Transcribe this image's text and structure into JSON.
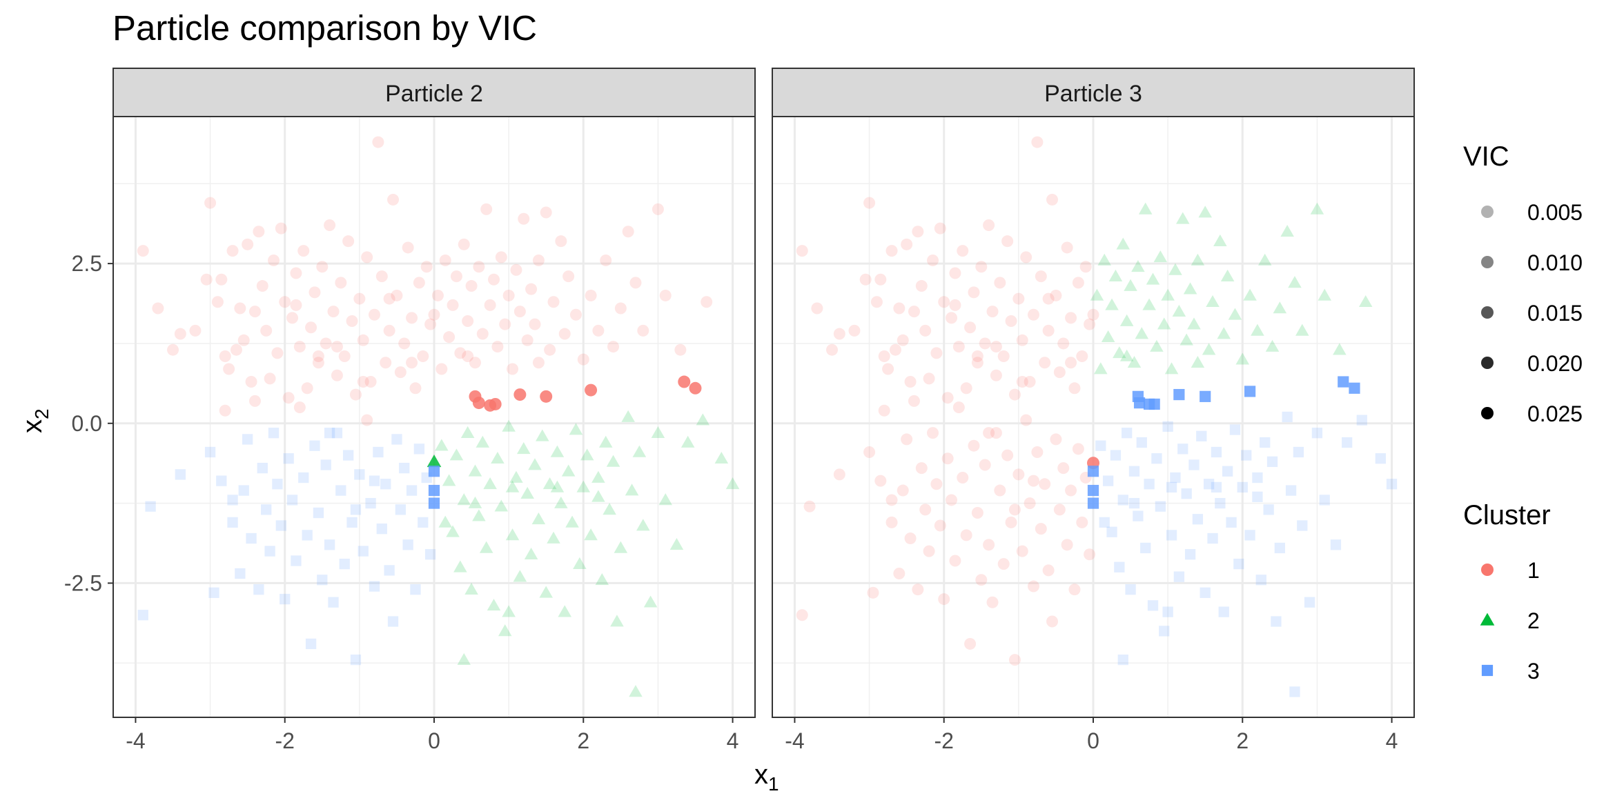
{
  "chart_data": {
    "type": "scatter",
    "title": "Particle comparison by VIC",
    "xlabel": "x",
    "xlabel_sub": "1",
    "ylabel": "x",
    "ylabel_sub": "2",
    "xlim": [
      -4.3,
      4.3
    ],
    "ylim": [
      -4.6,
      4.8
    ],
    "x_ticks": [
      -4,
      -2,
      0,
      2,
      4
    ],
    "x_tick_labels": [
      "-4",
      "-2",
      "0",
      "2",
      "4"
    ],
    "y_ticks": [
      -2.5,
      0.0,
      2.5
    ],
    "y_tick_labels": [
      "-2.5",
      "0.0",
      "2.5"
    ],
    "grid": true,
    "legend_position": "right",
    "colors": {
      "1": "#F8766D",
      "2": "#00BA38",
      "3": "#619CFF"
    },
    "legend": {
      "vic_title": "VIC",
      "vic_entries": [
        {
          "label": "0.005",
          "alpha": 0.3
        },
        {
          "label": "0.010",
          "alpha": 0.48
        },
        {
          "label": "0.015",
          "alpha": 0.66
        },
        {
          "label": "0.020",
          "alpha": 0.84
        },
        {
          "label": "0.025",
          "alpha": 1.0
        }
      ],
      "cluster_title": "Cluster",
      "cluster_entries": [
        {
          "label": "1",
          "shape": "circle"
        },
        {
          "label": "2",
          "shape": "triangle"
        },
        {
          "label": "3",
          "square": true,
          "shape": "square"
        }
      ]
    },
    "panels": [
      {
        "label": "Particle 2",
        "highlight": [
          {
            "x": 0.55,
            "y": 0.42,
            "cluster": 1
          },
          {
            "x": 0.6,
            "y": 0.32,
            "cluster": 1
          },
          {
            "x": 0.75,
            "y": 0.28,
            "cluster": 1
          },
          {
            "x": 0.82,
            "y": 0.3,
            "cluster": 1
          },
          {
            "x": 1.15,
            "y": 0.45,
            "cluster": 1
          },
          {
            "x": 1.5,
            "y": 0.42,
            "cluster": 1
          },
          {
            "x": 2.1,
            "y": 0.52,
            "cluster": 1
          },
          {
            "x": 3.35,
            "y": 0.65,
            "cluster": 1
          },
          {
            "x": 3.5,
            "y": 0.55,
            "cluster": 1
          },
          {
            "x": 0.0,
            "y": -0.6,
            "cluster": 2
          },
          {
            "x": 0.0,
            "y": -0.75,
            "cluster": 3
          },
          {
            "x": 0.0,
            "y": -1.05,
            "cluster": 3
          },
          {
            "x": 0.0,
            "y": -1.25,
            "cluster": 3
          }
        ]
      },
      {
        "label": "Particle 3",
        "highlight": [
          {
            "x": 0.6,
            "y": 0.42,
            "cluster": 3
          },
          {
            "x": 0.62,
            "y": 0.32,
            "cluster": 3
          },
          {
            "x": 0.75,
            "y": 0.3,
            "cluster": 3
          },
          {
            "x": 0.82,
            "y": 0.3,
            "cluster": 3
          },
          {
            "x": 1.15,
            "y": 0.45,
            "cluster": 3
          },
          {
            "x": 1.5,
            "y": 0.42,
            "cluster": 3
          },
          {
            "x": 2.1,
            "y": 0.5,
            "cluster": 3
          },
          {
            "x": 3.35,
            "y": 0.65,
            "cluster": 3
          },
          {
            "x": 3.5,
            "y": 0.55,
            "cluster": 3
          },
          {
            "x": 0.0,
            "y": -0.62,
            "cluster": 1
          },
          {
            "x": 0.0,
            "y": -0.75,
            "cluster": 3
          },
          {
            "x": 0.0,
            "y": -1.05,
            "cluster": 3
          },
          {
            "x": 0.0,
            "y": -1.25,
            "cluster": 3
          }
        ]
      }
    ],
    "background_points": [
      {
        "x": -3.9,
        "y": 2.7
      },
      {
        "x": -3.7,
        "y": 1.8
      },
      {
        "x": -3.5,
        "y": 1.15
      },
      {
        "x": -3.4,
        "y": 1.4
      },
      {
        "x": -3.2,
        "y": 1.45
      },
      {
        "x": -3.05,
        "y": 2.25
      },
      {
        "x": -3.0,
        "y": 3.45
      },
      {
        "x": -2.9,
        "y": 1.9
      },
      {
        "x": -2.85,
        "y": 2.25
      },
      {
        "x": -2.8,
        "y": 1.05
      },
      {
        "x": -2.75,
        "y": 0.85
      },
      {
        "x": -2.7,
        "y": 2.7
      },
      {
        "x": -2.6,
        "y": 1.8
      },
      {
        "x": -2.55,
        "y": 1.3
      },
      {
        "x": -2.5,
        "y": 2.8
      },
      {
        "x": -2.45,
        "y": 0.65
      },
      {
        "x": -2.4,
        "y": 1.75
      },
      {
        "x": -2.35,
        "y": 3.0
      },
      {
        "x": -2.3,
        "y": 2.15
      },
      {
        "x": -2.25,
        "y": 1.45
      },
      {
        "x": -2.2,
        "y": 0.7
      },
      {
        "x": -2.15,
        "y": 2.55
      },
      {
        "x": -2.1,
        "y": 1.1
      },
      {
        "x": -2.05,
        "y": 3.05
      },
      {
        "x": -2.0,
        "y": 1.9
      },
      {
        "x": -1.95,
        "y": 0.4
      },
      {
        "x": -1.9,
        "y": 1.65
      },
      {
        "x": -1.85,
        "y": 2.35
      },
      {
        "x": -1.8,
        "y": 1.2
      },
      {
        "x": -1.75,
        "y": 2.7
      },
      {
        "x": -1.7,
        "y": 0.55
      },
      {
        "x": -1.65,
        "y": 1.5
      },
      {
        "x": -1.6,
        "y": 2.05
      },
      {
        "x": -1.55,
        "y": 0.95
      },
      {
        "x": -1.5,
        "y": 2.45
      },
      {
        "x": -1.45,
        "y": 1.25
      },
      {
        "x": -1.4,
        "y": 3.1
      },
      {
        "x": -1.35,
        "y": 1.75
      },
      {
        "x": -1.3,
        "y": 0.75
      },
      {
        "x": -1.25,
        "y": 2.2
      },
      {
        "x": -1.2,
        "y": 1.05
      },
      {
        "x": -1.15,
        "y": 2.85
      },
      {
        "x": -1.1,
        "y": 1.6
      },
      {
        "x": -1.05,
        "y": 0.45
      },
      {
        "x": -1.0,
        "y": 1.95
      },
      {
        "x": -0.95,
        "y": 1.3
      },
      {
        "x": -0.9,
        "y": 2.6
      },
      {
        "x": -0.85,
        "y": 0.65
      },
      {
        "x": -0.8,
        "y": 1.7
      },
      {
        "x": -0.75,
        "y": 4.4
      },
      {
        "x": -0.7,
        "y": 2.3
      },
      {
        "x": -0.65,
        "y": 0.95
      },
      {
        "x": -0.6,
        "y": 1.45
      },
      {
        "x": -0.55,
        "y": 3.5
      },
      {
        "x": -0.5,
        "y": 2.0
      },
      {
        "x": -0.45,
        "y": 0.8
      },
      {
        "x": -0.4,
        "y": 1.25
      },
      {
        "x": -0.35,
        "y": 2.75
      },
      {
        "x": -0.3,
        "y": 1.65
      },
      {
        "x": -0.25,
        "y": 0.55
      },
      {
        "x": -0.2,
        "y": 2.2
      },
      {
        "x": -0.15,
        "y": 1.05
      },
      {
        "x": -0.1,
        "y": 2.45
      },
      {
        "x": -0.05,
        "y": 1.55
      },
      {
        "x": 0.05,
        "y": 2.0
      },
      {
        "x": 0.1,
        "y": 0.85
      },
      {
        "x": 0.15,
        "y": 2.55
      },
      {
        "x": 0.2,
        "y": 1.35
      },
      {
        "x": 0.25,
        "y": 1.85
      },
      {
        "x": 0.3,
        "y": 2.3
      },
      {
        "x": 0.35,
        "y": 1.1
      },
      {
        "x": 0.4,
        "y": 2.8
      },
      {
        "x": 0.45,
        "y": 1.6
      },
      {
        "x": 0.5,
        "y": 2.15
      },
      {
        "x": 0.55,
        "y": 0.95
      },
      {
        "x": 0.6,
        "y": 2.45
      },
      {
        "x": 0.65,
        "y": 1.4
      },
      {
        "x": 0.7,
        "y": 3.35
      },
      {
        "x": 0.75,
        "y": 1.85
      },
      {
        "x": 0.8,
        "y": 2.25
      },
      {
        "x": 0.85,
        "y": 1.2
      },
      {
        "x": 0.9,
        "y": 2.6
      },
      {
        "x": 0.95,
        "y": 1.55
      },
      {
        "x": 1.0,
        "y": 2.0
      },
      {
        "x": 1.05,
        "y": 0.85
      },
      {
        "x": 1.1,
        "y": 2.4
      },
      {
        "x": 1.15,
        "y": 1.75
      },
      {
        "x": 1.2,
        "y": 3.2
      },
      {
        "x": 1.25,
        "y": 1.3
      },
      {
        "x": 1.3,
        "y": 2.1
      },
      {
        "x": 1.35,
        "y": 1.55
      },
      {
        "x": 1.4,
        "y": 2.55
      },
      {
        "x": 1.5,
        "y": 3.3
      },
      {
        "x": 1.55,
        "y": 1.15
      },
      {
        "x": 1.6,
        "y": 1.9
      },
      {
        "x": 1.7,
        "y": 2.85
      },
      {
        "x": 1.75,
        "y": 1.4
      },
      {
        "x": 1.8,
        "y": 2.3
      },
      {
        "x": 1.9,
        "y": 1.7
      },
      {
        "x": 2.0,
        "y": 1.0
      },
      {
        "x": 2.1,
        "y": 2.0
      },
      {
        "x": 2.2,
        "y": 1.45
      },
      {
        "x": 2.3,
        "y": 2.55
      },
      {
        "x": 2.4,
        "y": 1.2
      },
      {
        "x": 2.5,
        "y": 1.8
      },
      {
        "x": 2.6,
        "y": 3.0
      },
      {
        "x": 2.7,
        "y": 2.2
      },
      {
        "x": 2.8,
        "y": 1.45
      },
      {
        "x": 3.0,
        "y": 3.35
      },
      {
        "x": 3.1,
        "y": 2.0
      },
      {
        "x": 3.3,
        "y": 1.15
      },
      {
        "x": 3.65,
        "y": 1.9
      },
      {
        "x": -1.55,
        "y": 1.05
      },
      {
        "x": -0.95,
        "y": 0.65
      },
      {
        "x": -0.6,
        "y": 1.95
      },
      {
        "x": -2.65,
        "y": 1.15
      },
      {
        "x": -1.85,
        "y": 1.85
      },
      {
        "x": 0.0,
        "y": 1.7
      },
      {
        "x": 0.45,
        "y": 1.05
      },
      {
        "x": 1.4,
        "y": 0.95
      },
      {
        "x": -1.3,
        "y": 1.2
      },
      {
        "x": -0.3,
        "y": 0.95
      },
      {
        "x": -3.9,
        "y": -3.0
      },
      {
        "x": -3.8,
        "y": -1.3
      },
      {
        "x": -3.4,
        "y": -0.8
      },
      {
        "x": -3.0,
        "y": -0.45
      },
      {
        "x": -2.95,
        "y": -2.65
      },
      {
        "x": -2.85,
        "y": -0.9
      },
      {
        "x": -2.8,
        "y": 0.2
      },
      {
        "x": -2.7,
        "y": -1.55
      },
      {
        "x": -2.6,
        "y": -2.35
      },
      {
        "x": -2.55,
        "y": -1.05
      },
      {
        "x": -2.5,
        "y": -0.25
      },
      {
        "x": -2.45,
        "y": -1.8
      },
      {
        "x": -2.4,
        "y": 0.35
      },
      {
        "x": -2.35,
        "y": -2.6
      },
      {
        "x": -2.3,
        "y": -0.7
      },
      {
        "x": -2.25,
        "y": -1.35
      },
      {
        "x": -2.2,
        "y": -2.0
      },
      {
        "x": -2.15,
        "y": -0.15
      },
      {
        "x": -2.1,
        "y": -0.95
      },
      {
        "x": -2.05,
        "y": -1.6
      },
      {
        "x": -2.0,
        "y": -2.75
      },
      {
        "x": -1.95,
        "y": -0.55
      },
      {
        "x": -1.9,
        "y": -1.2
      },
      {
        "x": -1.85,
        "y": -2.15
      },
      {
        "x": -1.8,
        "y": 0.25
      },
      {
        "x": -1.75,
        "y": -0.85
      },
      {
        "x": -1.7,
        "y": -1.75
      },
      {
        "x": -1.65,
        "y": -3.45
      },
      {
        "x": -1.6,
        "y": -0.35
      },
      {
        "x": -1.55,
        "y": -1.4
      },
      {
        "x": -1.5,
        "y": -2.45
      },
      {
        "x": -1.45,
        "y": -0.65
      },
      {
        "x": -1.4,
        "y": -1.9
      },
      {
        "x": -1.35,
        "y": -2.8
      },
      {
        "x": -1.3,
        "y": -0.15
      },
      {
        "x": -1.25,
        "y": -1.05
      },
      {
        "x": -1.2,
        "y": -2.2
      },
      {
        "x": -1.15,
        "y": -0.5
      },
      {
        "x": -1.1,
        "y": -1.55
      },
      {
        "x": -1.05,
        "y": -3.7
      },
      {
        "x": -1.0,
        "y": -0.8
      },
      {
        "x": -0.95,
        "y": -2.0
      },
      {
        "x": -0.9,
        "y": 0.05
      },
      {
        "x": -0.85,
        "y": -1.25
      },
      {
        "x": -0.8,
        "y": -2.55
      },
      {
        "x": -0.75,
        "y": -0.45
      },
      {
        "x": -0.7,
        "y": -1.65
      },
      {
        "x": -0.65,
        "y": -0.95
      },
      {
        "x": -0.6,
        "y": -2.3
      },
      {
        "x": -0.55,
        "y": -3.1
      },
      {
        "x": -0.5,
        "y": -0.25
      },
      {
        "x": -0.45,
        "y": -1.35
      },
      {
        "x": -0.4,
        "y": -0.7
      },
      {
        "x": -0.35,
        "y": -1.9
      },
      {
        "x": -0.3,
        "y": -1.05
      },
      {
        "x": -0.25,
        "y": -2.6
      },
      {
        "x": -0.2,
        "y": -0.4
      },
      {
        "x": -0.15,
        "y": -1.55
      },
      {
        "x": -0.1,
        "y": -0.85
      },
      {
        "x": -0.05,
        "y": -2.05
      },
      {
        "x": -1.4,
        "y": -0.15
      },
      {
        "x": -0.8,
        "y": -0.9
      },
      {
        "x": -2.7,
        "y": -1.2
      },
      {
        "x": -1.05,
        "y": -1.35
      },
      {
        "x": 0.1,
        "y": -0.35
      },
      {
        "x": 0.15,
        "y": -1.55
      },
      {
        "x": 0.2,
        "y": -0.9
      },
      {
        "x": 0.25,
        "y": -1.7
      },
      {
        "x": 0.3,
        "y": -0.5
      },
      {
        "x": 0.35,
        "y": -2.25
      },
      {
        "x": 0.4,
        "y": -1.2
      },
      {
        "x": 0.45,
        "y": -0.15
      },
      {
        "x": 0.5,
        "y": -2.6
      },
      {
        "x": 0.55,
        "y": -0.75
      },
      {
        "x": 0.6,
        "y": -1.45
      },
      {
        "x": 0.65,
        "y": -0.3
      },
      {
        "x": 0.7,
        "y": -1.95
      },
      {
        "x": 0.75,
        "y": -0.95
      },
      {
        "x": 0.8,
        "y": -2.85
      },
      {
        "x": 0.85,
        "y": -0.55
      },
      {
        "x": 0.9,
        "y": -1.3
      },
      {
        "x": 0.95,
        "y": -3.25
      },
      {
        "x": 1.0,
        "y": -0.05
      },
      {
        "x": 1.05,
        "y": -1.75
      },
      {
        "x": 1.1,
        "y": -0.85
      },
      {
        "x": 1.15,
        "y": -2.4
      },
      {
        "x": 1.2,
        "y": -0.4
      },
      {
        "x": 1.25,
        "y": -1.1
      },
      {
        "x": 1.3,
        "y": -2.05
      },
      {
        "x": 1.35,
        "y": -0.65
      },
      {
        "x": 1.4,
        "y": -1.5
      },
      {
        "x": 1.45,
        "y": -0.2
      },
      {
        "x": 1.5,
        "y": -2.65
      },
      {
        "x": 1.55,
        "y": -0.95
      },
      {
        "x": 1.6,
        "y": -1.8
      },
      {
        "x": 1.65,
        "y": -0.45
      },
      {
        "x": 1.7,
        "y": -1.25
      },
      {
        "x": 1.75,
        "y": -2.95
      },
      {
        "x": 1.8,
        "y": -0.75
      },
      {
        "x": 1.85,
        "y": -1.55
      },
      {
        "x": 1.9,
        "y": -0.1
      },
      {
        "x": 1.95,
        "y": -2.2
      },
      {
        "x": 2.0,
        "y": -1.0
      },
      {
        "x": 2.05,
        "y": -0.5
      },
      {
        "x": 2.1,
        "y": -1.75
      },
      {
        "x": 2.2,
        "y": -0.85
      },
      {
        "x": 2.25,
        "y": -2.45
      },
      {
        "x": 2.3,
        "y": -0.3
      },
      {
        "x": 2.35,
        "y": -1.35
      },
      {
        "x": 2.4,
        "y": -0.6
      },
      {
        "x": 2.5,
        "y": -1.95
      },
      {
        "x": 2.6,
        "y": 0.1
      },
      {
        "x": 2.65,
        "y": -1.05
      },
      {
        "x": 2.7,
        "y": -4.2
      },
      {
        "x": 2.75,
        "y": -0.45
      },
      {
        "x": 2.8,
        "y": -1.6
      },
      {
        "x": 2.9,
        "y": -2.8
      },
      {
        "x": 3.0,
        "y": -0.15
      },
      {
        "x": 3.1,
        "y": -1.2
      },
      {
        "x": 3.25,
        "y": -1.9
      },
      {
        "x": 3.4,
        "y": -0.3
      },
      {
        "x": 3.6,
        "y": 0.05
      },
      {
        "x": 3.85,
        "y": -0.55
      },
      {
        "x": 4.0,
        "y": -0.95
      },
      {
        "x": 1.05,
        "y": -1.0
      },
      {
        "x": 0.55,
        "y": -1.25
      },
      {
        "x": 1.65,
        "y": -1.0
      },
      {
        "x": 2.2,
        "y": -1.15
      },
      {
        "x": 0.4,
        "y": -3.7
      },
      {
        "x": 1.0,
        "y": -2.95
      },
      {
        "x": 2.45,
        "y": -3.1
      }
    ]
  }
}
